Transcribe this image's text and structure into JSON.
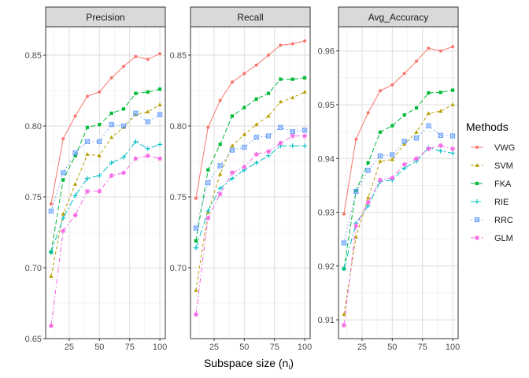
{
  "chart_data": {
    "type": "line",
    "xlabel_main": "Subspace size (n",
    "xlabel_sub": "i",
    "xlabel_close": ")",
    "x": [
      10,
      20,
      30,
      40,
      50,
      60,
      70,
      80,
      90,
      100
    ],
    "x_ticks": [
      25,
      50,
      75,
      100
    ],
    "x_tick_labels": [
      "25",
      "50",
      "75",
      "100"
    ],
    "xlim": [
      5.5,
      104.5
    ],
    "grid": true,
    "legend": {
      "title": "Methods",
      "position": "right",
      "entries": [
        {
          "name": "VWG",
          "color": "#F8766D",
          "shape": "circle",
          "dash": "solid"
        },
        {
          "name": "SVM",
          "color": "#B79F00",
          "shape": "triangle",
          "dash": "4,3"
        },
        {
          "name": "FKA",
          "color": "#00BA38",
          "shape": "square",
          "dash": "6,3"
        },
        {
          "name": "RIE",
          "color": "#00BFC4",
          "shape": "plus",
          "dash": "8,3,2,3"
        },
        {
          "name": "RRC",
          "color": "#619CFF",
          "shape": "boxed",
          "dash": "1.5,3"
        },
        {
          "name": "GLM",
          "color": "#F564E3",
          "shape": "star",
          "dash": "6,3,1.5,3"
        }
      ]
    },
    "panels": [
      {
        "title": "Precision",
        "ylim": [
          0.65,
          0.87
        ],
        "y_ticks": [
          0.65,
          0.7,
          0.75,
          0.8,
          0.85
        ],
        "y_tick_labels": [
          "0.65",
          "0.70",
          "0.75",
          "0.80",
          "0.85"
        ],
        "series": [
          {
            "name": "VWG",
            "values": [
              0.745,
              0.791,
              0.807,
              0.821,
              0.824,
              0.834,
              0.842,
              0.849,
              0.847,
              0.851
            ]
          },
          {
            "name": "SVM",
            "values": [
              0.694,
              0.738,
              0.759,
              0.78,
              0.779,
              0.792,
              0.799,
              0.808,
              0.81,
              0.815
            ]
          },
          {
            "name": "FKA",
            "values": [
              0.711,
              0.762,
              0.779,
              0.799,
              0.801,
              0.809,
              0.812,
              0.823,
              0.824,
              0.826
            ]
          },
          {
            "name": "RIE",
            "values": [
              0.711,
              0.735,
              0.751,
              0.763,
              0.765,
              0.774,
              0.778,
              0.789,
              0.784,
              0.787
            ]
          },
          {
            "name": "RRC",
            "values": [
              0.74,
              0.767,
              0.781,
              0.789,
              0.789,
              0.801,
              0.8,
              0.809,
              0.803,
              0.808
            ]
          },
          {
            "name": "GLM",
            "values": [
              0.659,
              0.726,
              0.737,
              0.754,
              0.754,
              0.765,
              0.767,
              0.777,
              0.779,
              0.777
            ]
          }
        ]
      },
      {
        "title": "Recall",
        "ylim": [
          0.65,
          0.87
        ],
        "y_ticks": [
          0.7,
          0.75,
          0.8,
          0.85
        ],
        "y_tick_labels": [
          "0.70",
          "0.75",
          "0.80",
          "0.85"
        ],
        "series": [
          {
            "name": "VWG",
            "values": [
              0.749,
              0.799,
              0.818,
              0.831,
              0.837,
              0.843,
              0.85,
              0.857,
              0.858,
              0.86
            ]
          },
          {
            "name": "SVM",
            "values": [
              0.684,
              0.739,
              0.766,
              0.786,
              0.794,
              0.801,
              0.807,
              0.817,
              0.82,
              0.824
            ]
          },
          {
            "name": "FKA",
            "values": [
              0.719,
              0.769,
              0.787,
              0.807,
              0.813,
              0.819,
              0.823,
              0.833,
              0.833,
              0.834
            ]
          },
          {
            "name": "RIE",
            "values": [
              0.714,
              0.74,
              0.756,
              0.763,
              0.769,
              0.774,
              0.779,
              0.786,
              0.786,
              0.786
            ]
          },
          {
            "name": "RRC",
            "values": [
              0.728,
              0.76,
              0.772,
              0.783,
              0.785,
              0.792,
              0.793,
              0.799,
              0.796,
              0.797
            ]
          },
          {
            "name": "GLM",
            "values": [
              0.667,
              0.735,
              0.752,
              0.767,
              0.771,
              0.78,
              0.782,
              0.788,
              0.793,
              0.793
            ]
          }
        ]
      },
      {
        "title": "Avg_Accuracy",
        "ylim": [
          0.9065,
          0.9645
        ],
        "y_ticks": [
          0.91,
          0.92,
          0.93,
          0.94,
          0.95,
          0.96
        ],
        "y_tick_labels": [
          "0.91",
          "0.92",
          "0.93",
          "0.94",
          "0.95",
          "0.96"
        ],
        "series": [
          {
            "name": "VWG",
            "values": [
              0.9297,
              0.9436,
              0.9485,
              0.9526,
              0.9537,
              0.9558,
              0.9581,
              0.9605,
              0.96,
              0.9608
            ]
          },
          {
            "name": "SVM",
            "values": [
              0.911,
              0.9254,
              0.9327,
              0.9395,
              0.9398,
              0.9427,
              0.9449,
              0.9484,
              0.9488,
              0.95
            ]
          },
          {
            "name": "FKA",
            "values": [
              0.9195,
              0.934,
              0.9392,
              0.9449,
              0.9461,
              0.9481,
              0.9494,
              0.9522,
              0.9523,
              0.9527
            ]
          },
          {
            "name": "RIE",
            "values": [
              0.9195,
              0.928,
              0.9312,
              0.9357,
              0.936,
              0.9382,
              0.9395,
              0.942,
              0.9414,
              0.941
            ]
          },
          {
            "name": "RRC",
            "values": [
              0.9243,
              0.9339,
              0.9378,
              0.9405,
              0.9407,
              0.9432,
              0.9438,
              0.9461,
              0.9443,
              0.9442
            ]
          },
          {
            "name": "GLM",
            "values": [
              0.909,
              0.9275,
              0.9318,
              0.936,
              0.9364,
              0.9389,
              0.94,
              0.9418,
              0.9424,
              0.9418
            ]
          }
        ]
      }
    ]
  }
}
